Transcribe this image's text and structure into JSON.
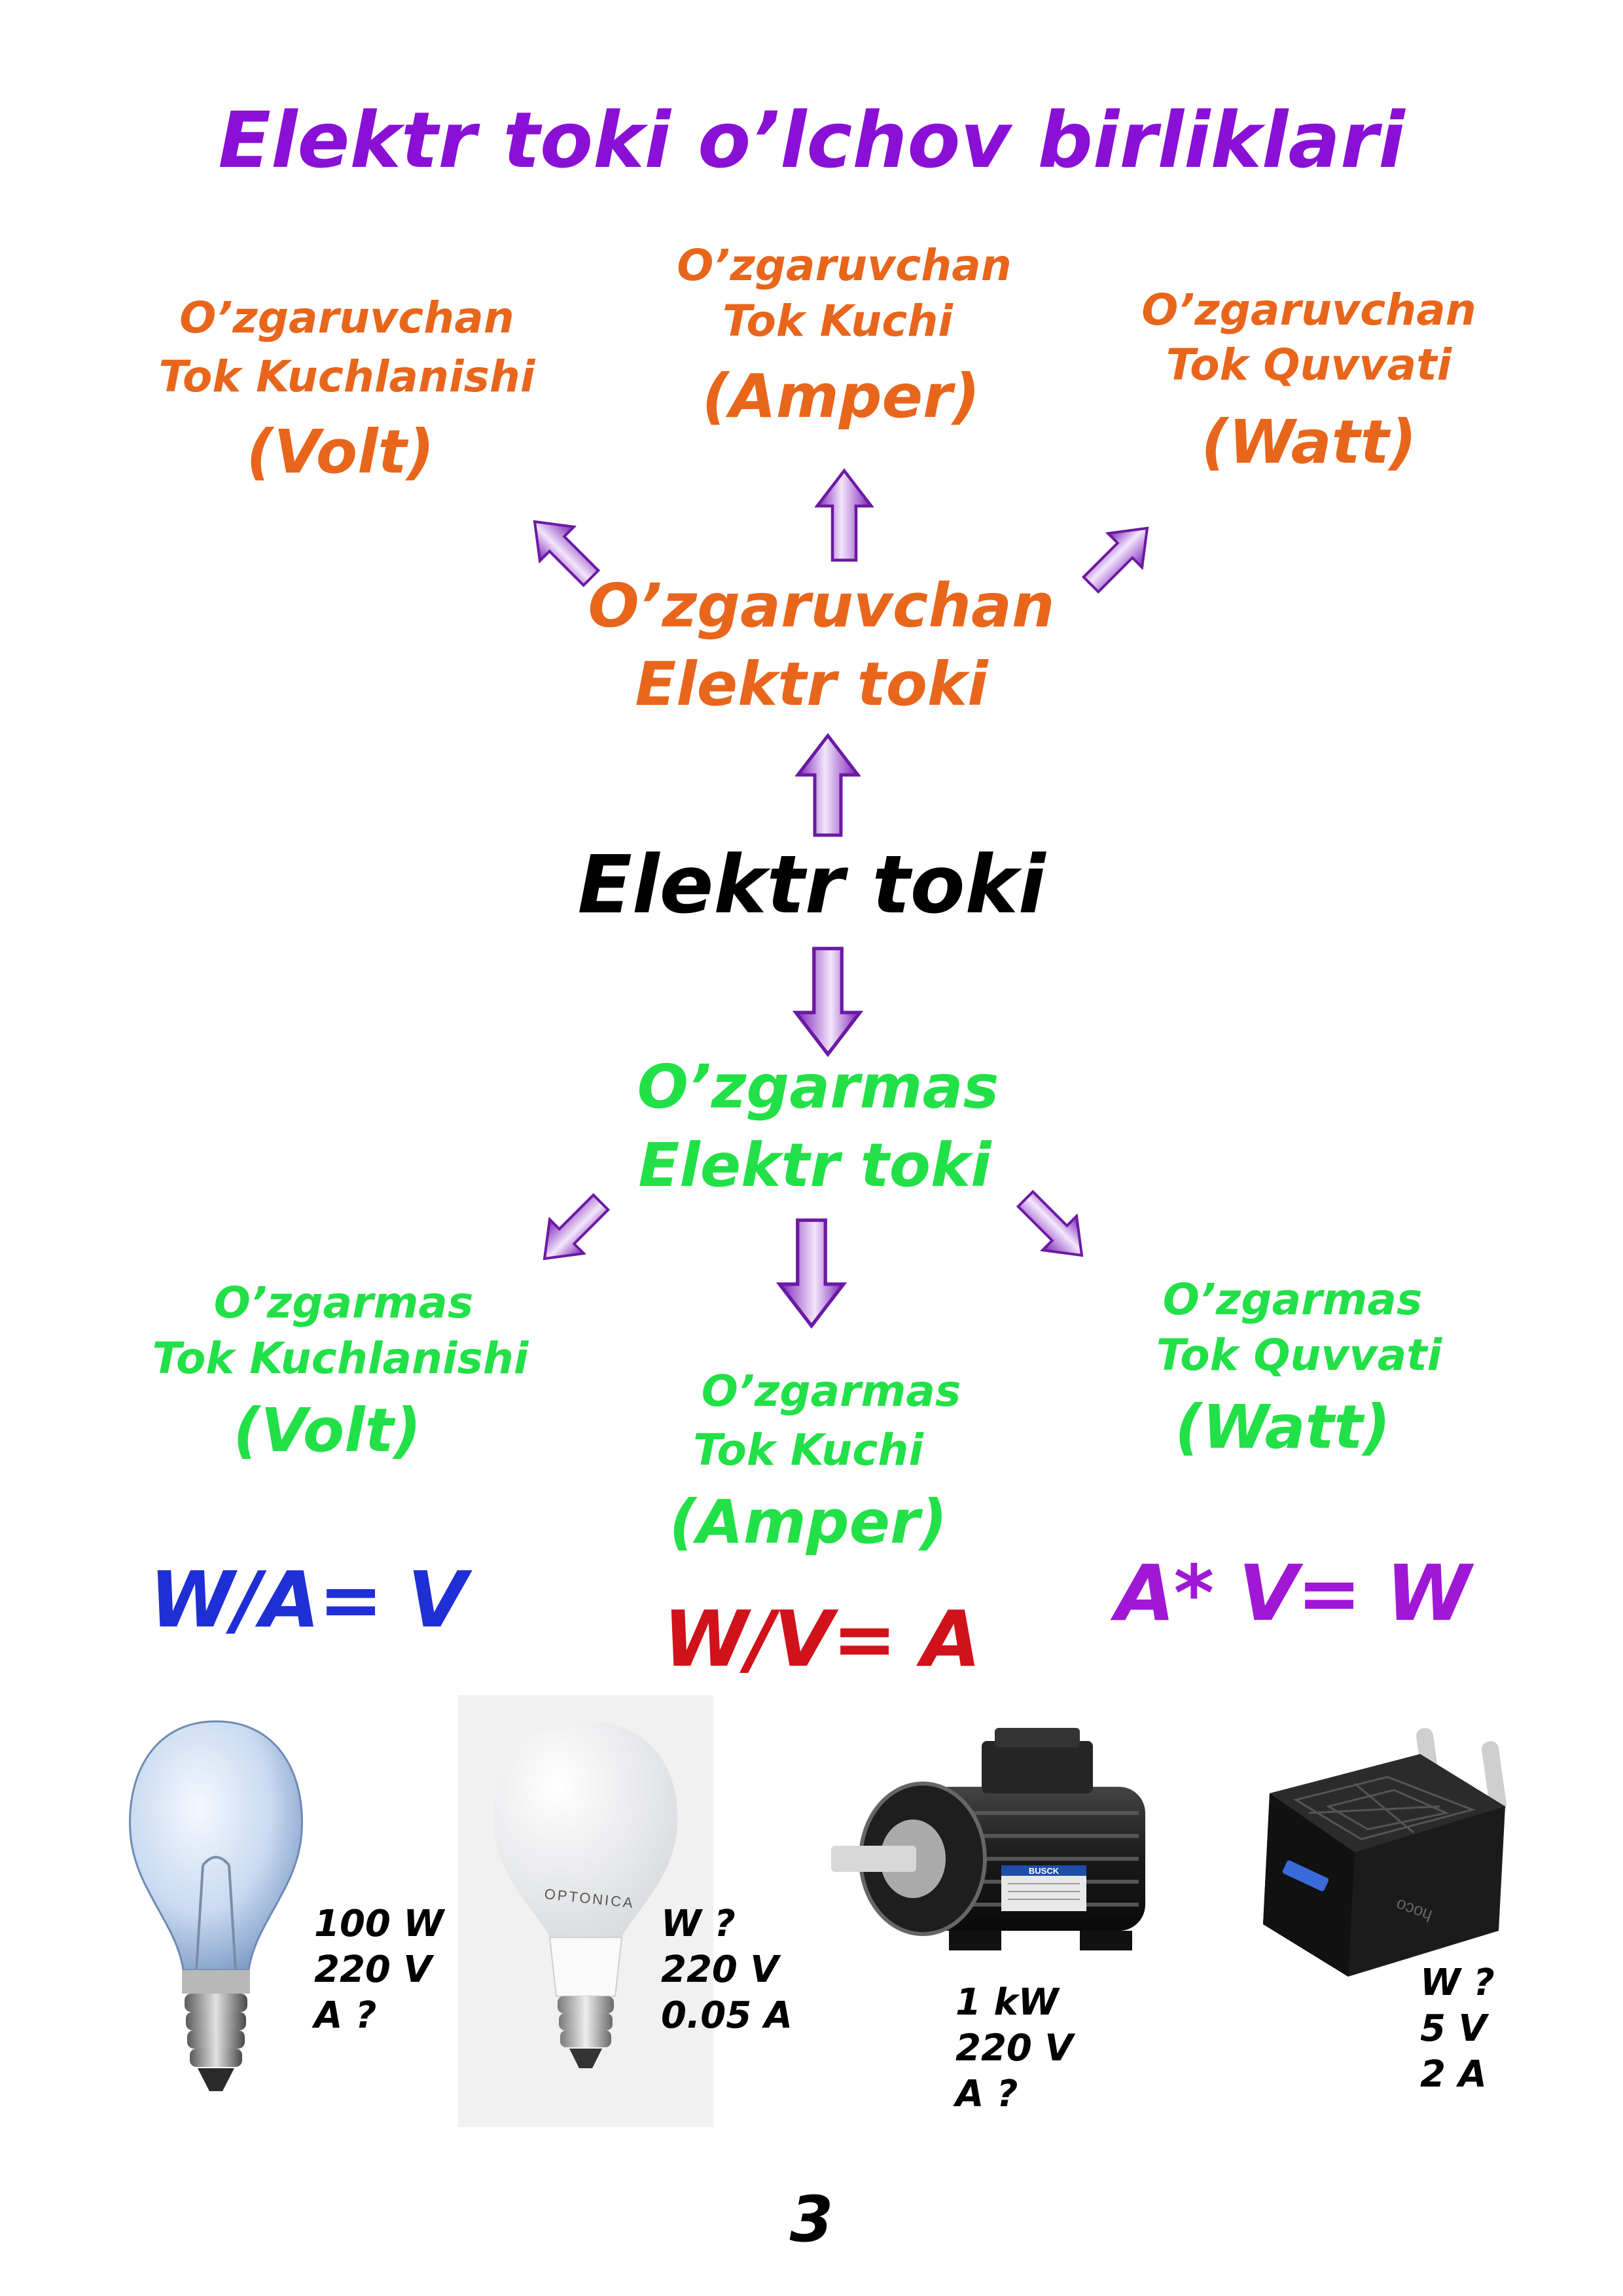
{
  "title": "Elektr toki o’lchov birliklari",
  "main": "Elektr toki",
  "ac": {
    "heading": [
      "O’zgaruvchan",
      "Elektr toki"
    ],
    "voltage": {
      "lines": [
        "O’zgaruvchan",
        "Tok Kuchlanishi"
      ],
      "unit": "(Volt)"
    },
    "current": {
      "lines": [
        "O’zgaruvchan",
        "Tok Kuchi"
      ],
      "unit": "(Amper)"
    },
    "power": {
      "lines": [
        "O’zgaruvchan",
        "Tok Quvvati"
      ],
      "unit": "(Watt)"
    }
  },
  "dc": {
    "heading": [
      "O’zgarmas",
      "Elektr toki"
    ],
    "voltage": {
      "lines": [
        "O’zgarmas",
        "Tok Kuchlanishi"
      ],
      "unit": "(Volt)"
    },
    "current": {
      "lines": [
        "O’zgarmas",
        "Tok Kuchi"
      ],
      "unit": "(Amper)"
    },
    "power": {
      "lines": [
        "O’zgarmas",
        "Tok Quvvati"
      ],
      "unit": "(Watt)"
    }
  },
  "formulas": {
    "voltage": "W/A= V",
    "current": "W/V= A",
    "power": "A* V= W"
  },
  "colors": {
    "title": "#8a10d6",
    "ac": "#e8661c",
    "dc": "#22e047",
    "formula_voltage": "#1f2fd6",
    "formula_current": "#d0121b",
    "formula_power": "#a018d6",
    "arrow": "#9b3fd0"
  },
  "devices": [
    {
      "name": "incandescent-bulb",
      "specs": [
        "100 W",
        "220 V",
        "A ?"
      ]
    },
    {
      "name": "led-bulb",
      "brand": "OPTONICA",
      "specs": [
        "W ?",
        "220 V",
        "0.05 A"
      ]
    },
    {
      "name": "electric-motor",
      "brand": "BUSCK",
      "specs": [
        "1 kW",
        "220 V",
        "A ?"
      ]
    },
    {
      "name": "usb-charger",
      "brand": "hoco",
      "specs": [
        "W ?",
        "5 V",
        "2 A"
      ]
    }
  ],
  "page_number": "3"
}
